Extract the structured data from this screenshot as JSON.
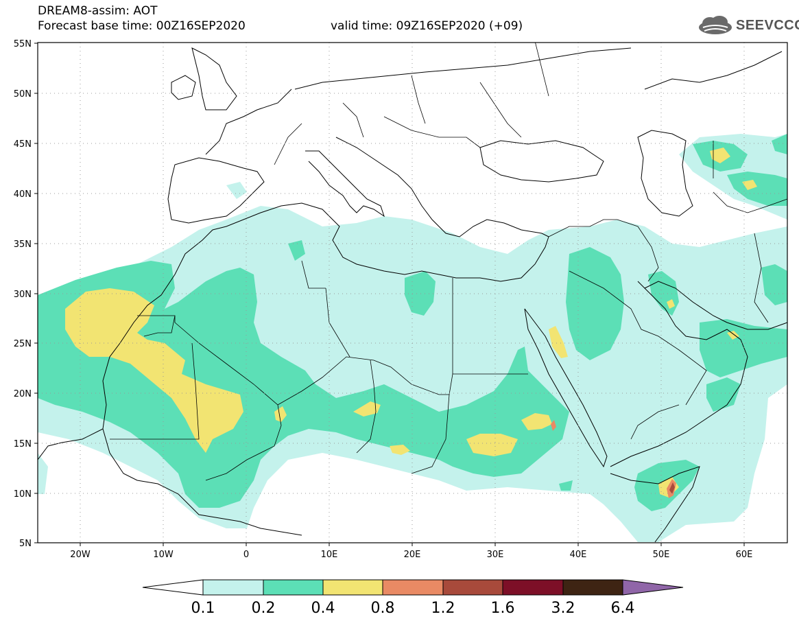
{
  "header": {
    "title": "DREAM8-assim: AOT",
    "base_time": "Forecast base time: 00Z16SEP2020",
    "valid_time": "valid time: 09Z16SEP2020 (+09)",
    "logo_text": "SEEVCCC"
  },
  "map": {
    "lat_range": [
      5,
      55
    ],
    "lon_range": [
      -25,
      65
    ],
    "lat_labels": [
      "55N",
      "50N",
      "45N",
      "40N",
      "35N",
      "30N",
      "25N",
      "20N",
      "15N",
      "10N",
      "5N"
    ],
    "lon_labels": [
      "20W",
      "10W",
      "0",
      "10E",
      "20E",
      "30E",
      "40E",
      "50E",
      "60E"
    ]
  },
  "colorbar": {
    "labels": [
      "0.1",
      "0.2",
      "0.4",
      "0.8",
      "1.2",
      "1.6",
      "3.2",
      "6.4"
    ],
    "colors": [
      "#c4f2ec",
      "#5cdfb6",
      "#f2e472",
      "#e98a64",
      "#a84a3b",
      "#7d0f27",
      "#3e2413",
      "#9066a8"
    ]
  }
}
